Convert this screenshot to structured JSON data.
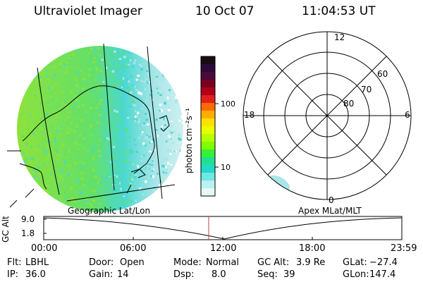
{
  "header": {
    "instrument": "Ultraviolet Imager",
    "date": "10 Oct 07",
    "time": "11:04:53 UT"
  },
  "colorbar": {
    "label": "photon cm⁻²s⁻¹",
    "ticks": [
      "100",
      "10"
    ],
    "colors": [
      "#1a0a14",
      "#2b0a3a",
      "#4a0a3a",
      "#7a0022",
      "#b0001a",
      "#e0201e",
      "#ff6a00",
      "#ffae00",
      "#ffe100",
      "#e8ff00",
      "#b8ff00",
      "#7dff00",
      "#34f03a",
      "#20e090",
      "#22d8c8",
      "#6ee8e0",
      "#b8f2f0",
      "#e8f8f8"
    ]
  },
  "geo_map": {
    "colors": {
      "dim": "#a9e6e8",
      "mid": "#63e06a",
      "bright": "#8ee23a",
      "cyan": "#4ad8d0"
    }
  },
  "polar": {
    "mlt_labels": {
      "top": "12",
      "left": "18",
      "right": "6",
      "bottom": "0"
    },
    "lat_labels": [
      "80",
      "70",
      "60"
    ]
  },
  "labels": {
    "left_coord": "Geographic Lat/Lon",
    "right_coord": "Apex MLat/MLT"
  },
  "altitude_plot": {
    "ylabel": "GC Alt",
    "yticks": [
      "9.0",
      "1.8"
    ],
    "xticks": [
      "00:00",
      "06:00",
      "12:00",
      "18:00",
      "23:59"
    ],
    "marker_color": "#c04040"
  },
  "status": {
    "row1": [
      {
        "key": "Flt:",
        "value": "LBHL"
      },
      {
        "key": "Door:",
        "value": "Open"
      },
      {
        "key": "Mode:",
        "value": "Normal"
      },
      {
        "key": "GC Alt:",
        "value": "3.9 Re"
      },
      {
        "key": "GLat:",
        "value": "−27.4"
      }
    ],
    "row2": [
      {
        "key": "IP:",
        "value": "36.0"
      },
      {
        "key": "Gain:",
        "value": "14"
      },
      {
        "key": "Dsp:",
        "value": "8.0"
      },
      {
        "key": "Seq:",
        "value": "39"
      },
      {
        "key": "GLon:",
        "value": "147.4"
      }
    ]
  }
}
